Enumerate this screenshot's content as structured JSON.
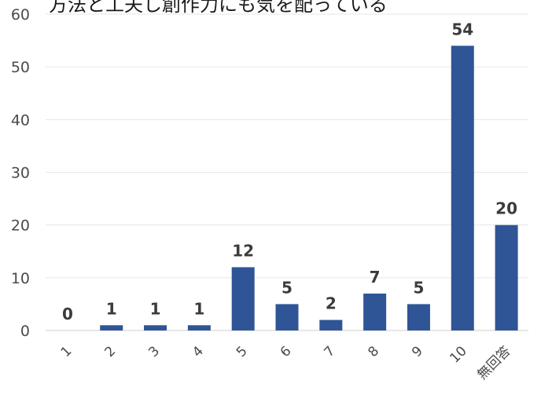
{
  "chart_data": {
    "type": "bar",
    "title": "方法と工夫し創作力にも気を配っている",
    "categories": [
      "1",
      "2",
      "3",
      "4",
      "5",
      "6",
      "7",
      "8",
      "9",
      "10",
      "無回答"
    ],
    "values": [
      0,
      1,
      1,
      1,
      12,
      5,
      2,
      7,
      5,
      54,
      20
    ],
    "ylim": [
      0,
      60
    ],
    "yticks": [
      0,
      10,
      20,
      30,
      40,
      50,
      60
    ],
    "grid": true,
    "bar_color": "#2f5597"
  }
}
